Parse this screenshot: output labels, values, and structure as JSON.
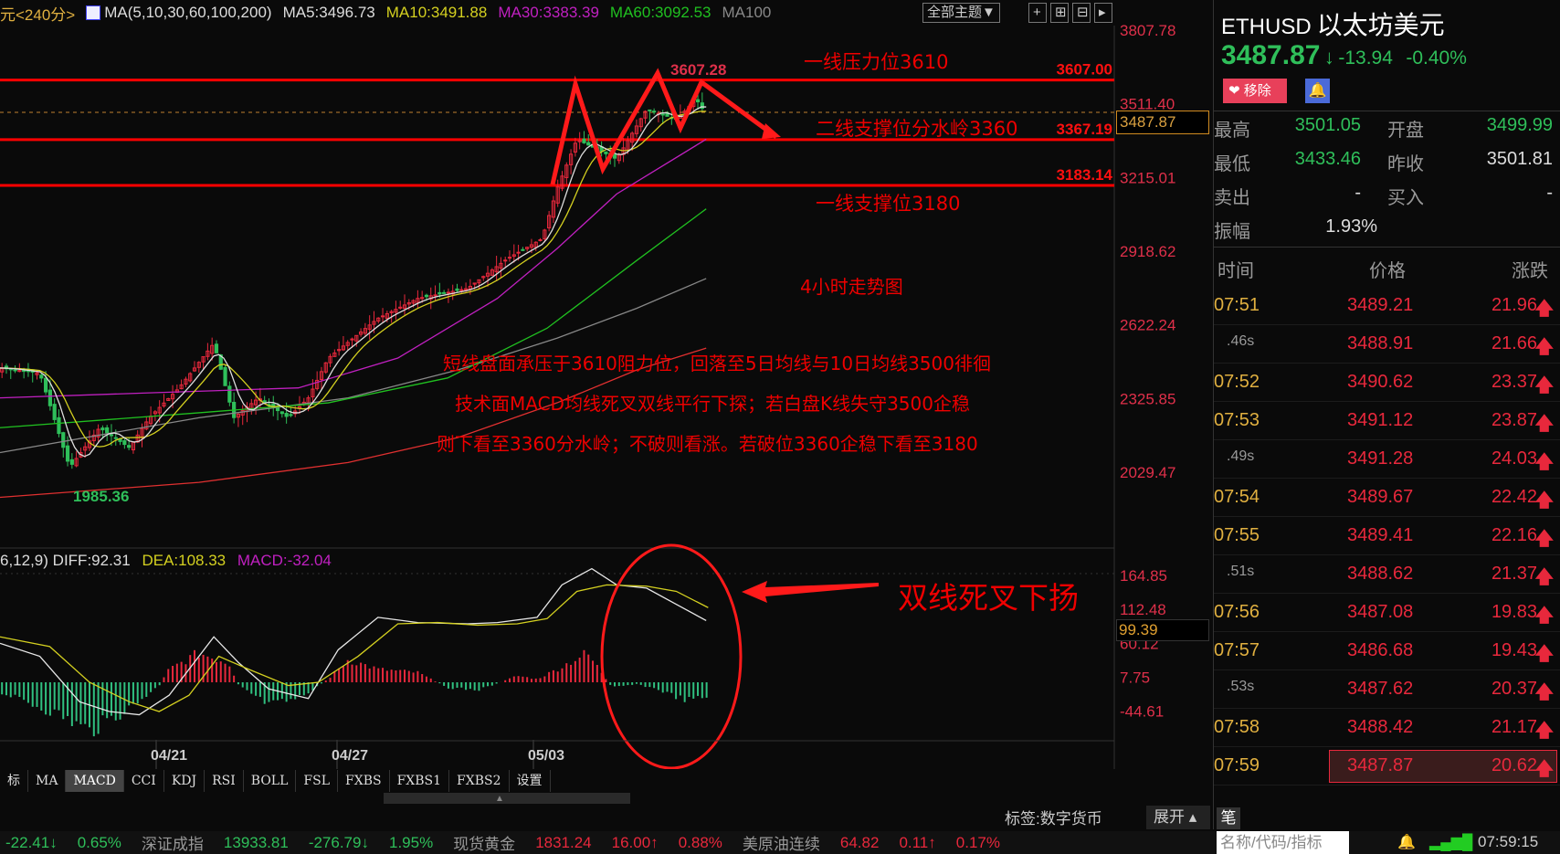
{
  "header": {
    "period": "元<240分>",
    "ma_label": "MA(5,10,30,60,100,200)",
    "ma5": "MA5:3496.73",
    "ma10": "MA10:3491.88",
    "ma30": "MA30:3383.39",
    "ma60": "MA60:3092.53",
    "ma100": "MA100",
    "theme_button": "全部主题▼"
  },
  "price_axis": {
    "ticks": [
      "3807.78",
      "3511.40",
      "3215.01",
      "2918.62",
      "2622.24",
      "2325.85",
      "2029.47"
    ],
    "current": "3487.87"
  },
  "chart": {
    "high_label": "3607.28",
    "low_label": "1985.36",
    "level_labels": [
      "3607.00",
      "3367.19",
      "3183.14"
    ],
    "annotations": {
      "resistance": "一线压力位3610",
      "support2": "二线支撑位分水岭3360",
      "support1": "一线支撑位3180",
      "chart_type": "4小时走势图",
      "comment": [
        "短线盘面承压于3610阻力位，回落至5日均线与10日均线3500徘徊",
        "技术面MACD均线死叉双线平行下探；若白盘K线失守3500企稳",
        "则下看至3360分水岭；不破则看涨。若破位3360企稳下看至3180"
      ],
      "macd_note": "双线死叉下扬"
    },
    "dates": [
      "04/21",
      "04/27",
      "05/03"
    ]
  },
  "macd": {
    "params": "6,12,9)",
    "diff": "DIFF:92.31",
    "dea": "DEA:108.33",
    "macd": "MACD:-32.04",
    "ticks": [
      "164.85",
      "112.48",
      "60.12",
      "7.75",
      "-44.61"
    ],
    "current": "99.39"
  },
  "tabs": [
    "标",
    "MA",
    "MACD",
    "CCI",
    "KDJ",
    "RSI",
    "BOLL",
    "FSL",
    "FXBS",
    "FXBS1",
    "FXBS2",
    "设置"
  ],
  "active_tab": "MACD",
  "tag_bar": {
    "tag": "标签:数字货币",
    "expand": "展开 ▴",
    "pen": "笔"
  },
  "quote": {
    "symbol": "ETHUSD",
    "name": "以太坊美元",
    "price": "3487.87",
    "arrow": "↓",
    "change": "-13.94",
    "change_pct": "-0.40%",
    "remove_button": "移除",
    "stats": [
      {
        "label": "最高",
        "value": "3501.05"
      },
      {
        "label": "开盘",
        "value": "3499.99"
      },
      {
        "label": "最低",
        "value": "3433.46"
      },
      {
        "label": "昨收",
        "value": "3501.81"
      },
      {
        "label": "卖出",
        "value": "-"
      },
      {
        "label": "买入",
        "value": "-"
      },
      {
        "label": "振幅",
        "value": "1.93%"
      }
    ],
    "columns": [
      "时间",
      "价格",
      "涨跌"
    ],
    "ticks": [
      {
        "time": "07:51",
        "price": "3489.21",
        "change": "21.96"
      },
      {
        "time": ".46s",
        "price": "3488.91",
        "change": "21.66"
      },
      {
        "time": "07:52",
        "price": "3490.62",
        "change": "23.37"
      },
      {
        "time": "07:53",
        "price": "3491.12",
        "change": "23.87"
      },
      {
        "time": ".49s",
        "price": "3491.28",
        "change": "24.03"
      },
      {
        "time": "07:54",
        "price": "3489.67",
        "change": "22.42"
      },
      {
        "time": "07:55",
        "price": "3489.41",
        "change": "22.16"
      },
      {
        "time": ".51s",
        "price": "3488.62",
        "change": "21.37"
      },
      {
        "time": "07:56",
        "price": "3487.08",
        "change": "19.83"
      },
      {
        "time": "07:57",
        "price": "3486.68",
        "change": "19.43"
      },
      {
        "time": ".53s",
        "price": "3487.62",
        "change": "20.37"
      },
      {
        "time": "07:58",
        "price": "3488.42",
        "change": "21.17"
      },
      {
        "time": "07:59",
        "price": "3487.87",
        "change": "20.62"
      }
    ]
  },
  "ticker": {
    "items": [
      {
        "text": "-22.41↓",
        "color": "green"
      },
      {
        "text": "0.65%",
        "color": "green"
      },
      {
        "text": "深证成指",
        "color": "gray"
      },
      {
        "text": "13933.81",
        "color": "green"
      },
      {
        "text": "-276.79↓",
        "color": "green"
      },
      {
        "text": "1.95%",
        "color": "green"
      },
      {
        "text": "现货黄金",
        "color": "gray"
      },
      {
        "text": "1831.24",
        "color": "red"
      },
      {
        "text": "16.00↑",
        "color": "red"
      },
      {
        "text": "0.88%",
        "color": "red"
      },
      {
        "text": "美原油连续",
        "color": "gray"
      },
      {
        "text": "64.82",
        "color": "red"
      },
      {
        "text": "0.11↑",
        "color": "red"
      },
      {
        "text": "0.17%",
        "color": "red"
      }
    ],
    "search_placeholder": "名称/代码/指标",
    "clock": "07:59:15"
  },
  "colors": {
    "up": "#e8283c",
    "down": "#2fbf5a",
    "annotation": "#ff0000",
    "ma5": "#dddddd",
    "ma10": "#d4d020",
    "ma30": "#c020c0",
    "ma60": "#20c020",
    "ma100": "#888888",
    "ma200": "#e03030"
  }
}
